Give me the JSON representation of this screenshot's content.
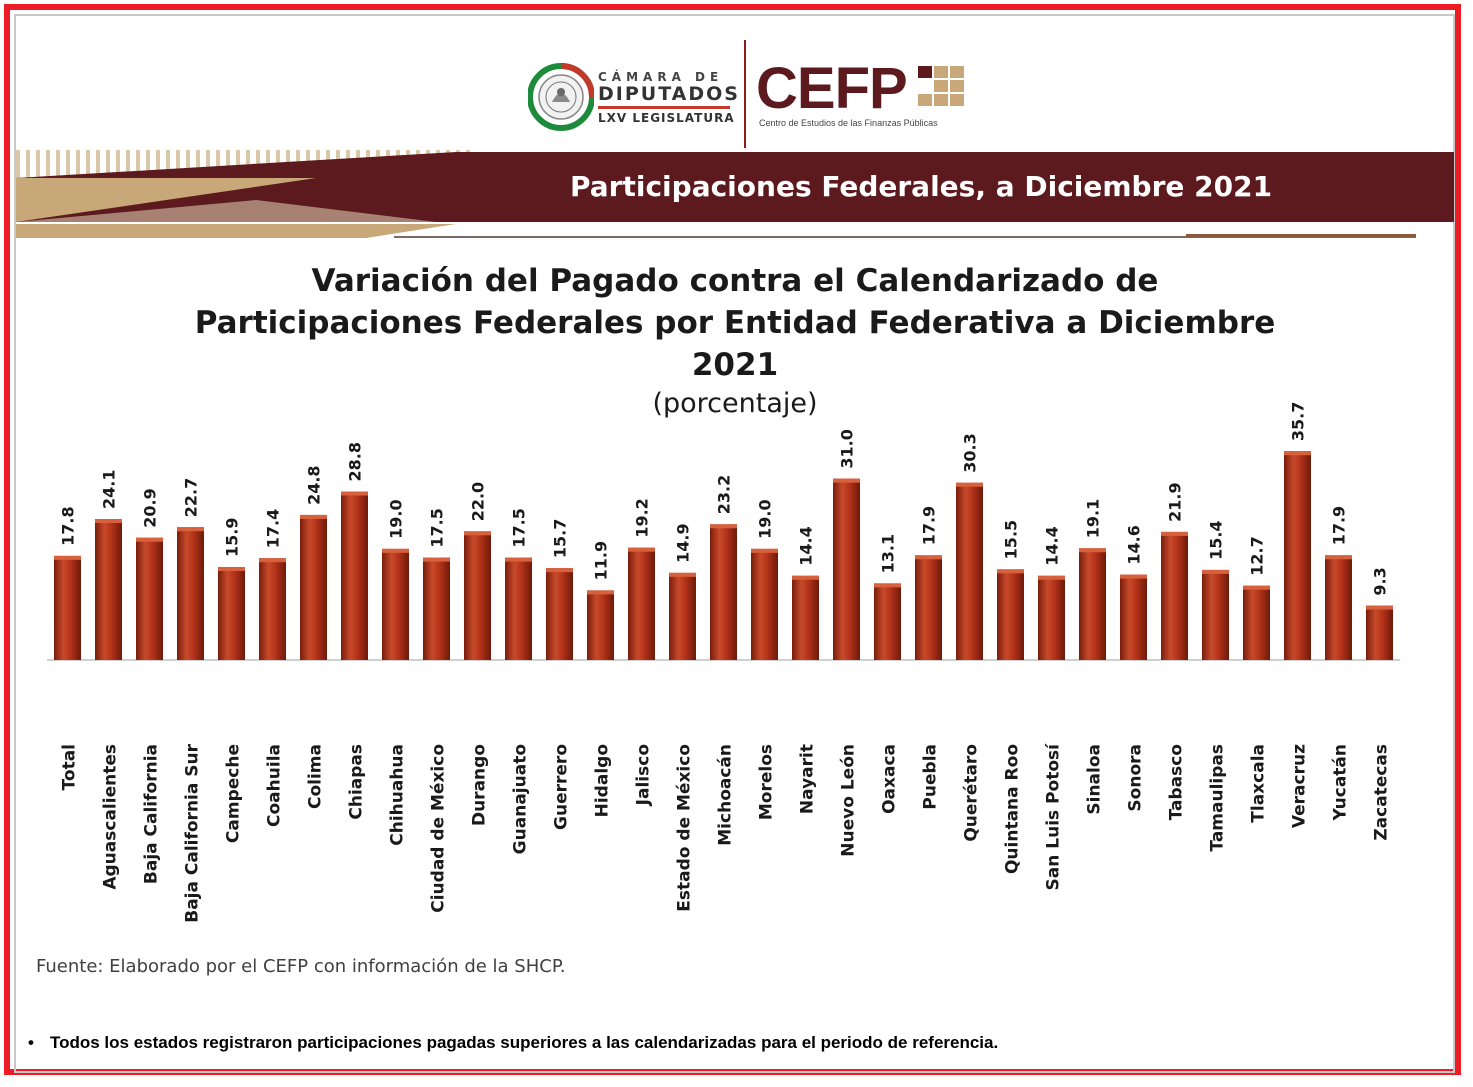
{
  "header": {
    "camara": {
      "top": "CÁMARA DE",
      "main": "DIPUTADOS",
      "sub": "LXV LEGISLATURA"
    },
    "cefp": {
      "word": "CEFP",
      "subtitle": "Centro de Estudios de las Finanzas Públicas"
    },
    "banner_title": "Participaciones Federales, a Diciembre 2021"
  },
  "colors": {
    "frame": "#ee1c25",
    "banner": "#5c1a1f",
    "accent_gold": "#c8a878",
    "bar": "#b5331a"
  },
  "chart_data": {
    "type": "bar",
    "title": "Variación del Pagado contra el Calendarizado de Participaciones Federales por Entidad Federativa a Diciembre 2021",
    "subtitle": "(porcentaje)",
    "categories": [
      "Total",
      "Aguascalientes",
      "Baja California",
      "Baja California Sur",
      "Campeche",
      "Coahuila",
      "Colima",
      "Chiapas",
      "Chihuahua",
      "Ciudad de México",
      "Durango",
      "Guanajuato",
      "Guerrero",
      "Hidalgo",
      "Jalisco",
      "Estado de México",
      "Michoacán",
      "Morelos",
      "Nayarit",
      "Nuevo León",
      "Oaxaca",
      "Puebla",
      "Querétaro",
      "Quintana Roo",
      "San Luis Potosí",
      "Sinaloa",
      "Sonora",
      "Tabasco",
      "Tamaulipas",
      "Tlaxcala",
      "Veracruz",
      "Yucatán",
      "Zacatecas"
    ],
    "values": [
      17.8,
      24.1,
      20.9,
      22.7,
      15.9,
      17.4,
      24.8,
      28.8,
      19.0,
      17.5,
      22.0,
      17.5,
      15.7,
      11.9,
      19.2,
      14.9,
      23.2,
      19.0,
      14.4,
      31.0,
      13.1,
      17.9,
      30.3,
      15.5,
      14.4,
      19.1,
      14.6,
      21.9,
      15.4,
      12.7,
      35.7,
      17.9,
      9.3
    ],
    "value_labels": [
      "17.8",
      "24.1",
      "20.9",
      "22.7",
      "15.9",
      "17.4",
      "24.8",
      "28.8",
      "19.0",
      "17.5",
      "22.0",
      "17.5",
      "15.7",
      "11.9",
      "19.2",
      "14.9",
      "23.2",
      "19.0",
      "14.4",
      "31.0",
      "13.1",
      "17.9",
      "30.3",
      "15.5",
      "14.4",
      "19.1",
      "14.6",
      "21.9",
      "15.4",
      "12.7",
      "35.7",
      "17.9",
      "9.3"
    ],
    "xlabel": "",
    "ylabel": "",
    "ylim": [
      0,
      36
    ],
    "grid": false,
    "legend": "none"
  },
  "source": "Fuente: Elaborado por el CEFP con información de la SHCP.",
  "note": {
    "bullet": "•",
    "text": "Todos los estados registraron participaciones pagadas superiores a las calendarizadas para el periodo de referencia."
  }
}
